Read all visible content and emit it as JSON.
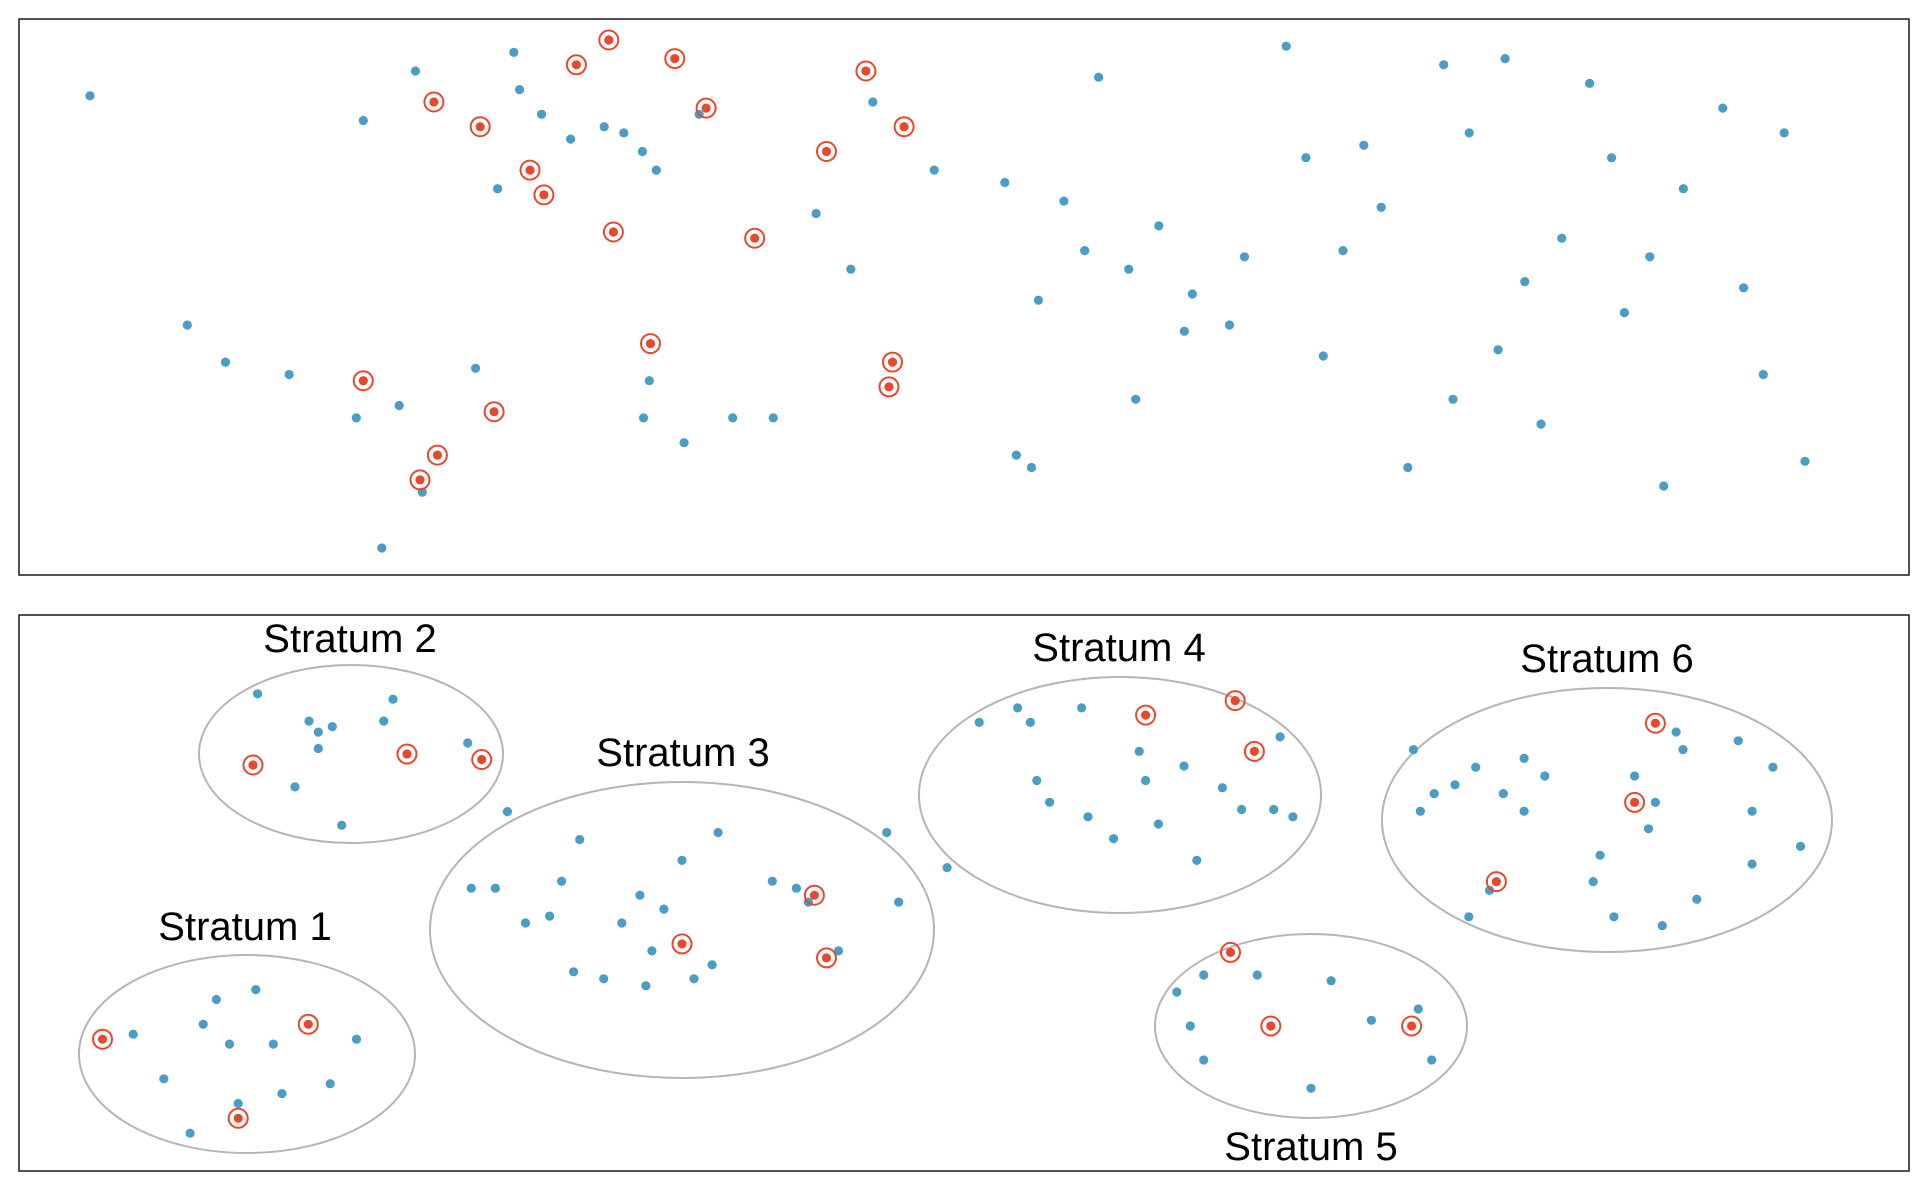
{
  "colors": {
    "point": "#4a9dc5",
    "sampled_ring": "#e8482e",
    "stratum_outline": "#b5b5b5",
    "frame": "#1a1a1a"
  },
  "panels": {
    "top": {
      "description_shown": false,
      "points": [
        [
          -32.1,
          3.4
        ],
        [
          -23.7,
          -0.3
        ],
        [
          -20.4,
          -0.9
        ],
        [
          -14.9,
          -1.1
        ],
        [
          -9.1,
          -1.8
        ],
        [
          -8.5,
          3.0
        ],
        [
          -6.9,
          -3.9
        ],
        [
          -5.4,
          -1.6
        ],
        [
          -4.0,
          3.8
        ],
        [
          -3.4,
          -3.0
        ],
        [
          1.2,
          -1.0
        ],
        [
          3.1,
          1.9
        ],
        [
          4.5,
          4.1
        ],
        [
          5.0,
          3.5
        ],
        [
          6.9,
          3.1
        ],
        [
          9.4,
          2.7
        ],
        [
          12.3,
          2.9
        ],
        [
          14.0,
          2.8
        ],
        [
          15.6,
          2.5
        ],
        [
          15.7,
          -1.8
        ],
        [
          16.2,
          -1.2
        ],
        [
          16.8,
          2.2
        ],
        [
          19.2,
          -2.2
        ],
        [
          20.5,
          3.1
        ],
        [
          23.4,
          -1.8
        ],
        [
          26.9,
          -1.8
        ],
        [
          30.6,
          1.5
        ],
        [
          33.6,
          0.6
        ],
        [
          35.5,
          3.3
        ],
        [
          40.8,
          2.2
        ],
        [
          46.9,
          2.0
        ],
        [
          47.9,
          -2.4
        ],
        [
          49.2,
          -2.6
        ],
        [
          49.8,
          0.1
        ],
        [
          52.0,
          1.7
        ],
        [
          53.8,
          0.9
        ],
        [
          55.0,
          3.7
        ],
        [
          57.6,
          0.6
        ],
        [
          58.2,
          -1.5
        ],
        [
          60.2,
          1.3
        ],
        [
          62.4,
          -0.4
        ],
        [
          63.1,
          0.2
        ],
        [
          66.3,
          -0.3
        ],
        [
          67.6,
          0.8
        ],
        [
          71.2,
          4.2
        ],
        [
          72.9,
          2.4
        ],
        [
          74.4,
          -0.8
        ],
        [
          76.1,
          0.9
        ],
        [
          77.9,
          2.6
        ],
        [
          79.4,
          1.6
        ],
        [
          81.7,
          -2.6
        ],
        [
          84.8,
          3.9
        ],
        [
          85.6,
          -1.5
        ],
        [
          87.0,
          2.8
        ],
        [
          89.5,
          -0.7
        ],
        [
          90.1,
          4.0
        ],
        [
          91.8,
          0.4
        ],
        [
          93.2,
          -1.9
        ],
        [
          95.0,
          1.1
        ],
        [
          97.4,
          3.6
        ],
        [
          99.3,
          2.4
        ],
        [
          100.4,
          -0.1
        ],
        [
          102.6,
          0.8
        ],
        [
          103.8,
          -2.9
        ],
        [
          105.5,
          1.9
        ],
        [
          108.9,
          3.2
        ],
        [
          110.7,
          0.3
        ],
        [
          112.4,
          -1.1
        ],
        [
          114.2,
          2.8
        ],
        [
          116.0,
          -2.5
        ]
      ],
      "sampled": [
        [
          -8.5,
          -1.2
        ],
        [
          -2.4,
          3.3
        ],
        [
          1.6,
          2.9
        ],
        [
          2.8,
          -1.7
        ],
        [
          5.9,
          2.2
        ],
        [
          7.1,
          1.8
        ],
        [
          9.9,
          3.9
        ],
        [
          12.7,
          4.3
        ],
        [
          13.1,
          1.2
        ],
        [
          16.3,
          -0.6
        ],
        [
          21.1,
          3.2
        ],
        [
          25.3,
          1.1
        ],
        [
          31.5,
          2.5
        ],
        [
          34.9,
          3.8
        ],
        [
          36.9,
          -1.3
        ],
        [
          37.2,
          -0.9
        ],
        [
          38.2,
          2.9
        ],
        [
          -2.1,
          -2.4
        ],
        [
          -3.6,
          -2.8
        ],
        [
          18.4,
          4.0
        ]
      ]
    },
    "bottom": {
      "strata": [
        {
          "label": "Stratum 1",
          "points": [
            [
              -2.6,
              0.4
            ],
            [
              -1.9,
              -0.5
            ],
            [
              -1.0,
              0.6
            ],
            [
              -0.7,
              1.1
            ],
            [
              -0.4,
              0.2
            ],
            [
              0.2,
              1.3
            ],
            [
              -0.2,
              -1.0
            ],
            [
              0.8,
              -0.8
            ],
            [
              1.9,
              -0.6
            ],
            [
              2.5,
              0.3
            ],
            [
              -1.3,
              -1.6
            ],
            [
              0.6,
              0.2
            ]
          ],
          "sampled": [
            [
              -3.3,
              0.3
            ],
            [
              -0.2,
              -1.3
            ],
            [
              1.4,
              0.6
            ]
          ]
        },
        {
          "label": "Stratum 2",
          "points": [
            [
              -2.0,
              1.1
            ],
            [
              -0.9,
              0.6
            ],
            [
              -0.7,
              0.4
            ],
            [
              -0.4,
              0.5
            ],
            [
              0.7,
              0.6
            ],
            [
              0.9,
              1.0
            ],
            [
              -0.7,
              0.1
            ],
            [
              -1.2,
              -0.6
            ],
            [
              -0.2,
              -1.3
            ],
            [
              2.5,
              0.2
            ]
          ],
          "sampled": [
            [
              -2.1,
              -0.2
            ],
            [
              1.2,
              0.0
            ],
            [
              2.8,
              -0.1
            ]
          ]
        },
        {
          "label": "Stratum 3",
          "points": [
            [
              -2.9,
              1.7
            ],
            [
              -1.7,
              1.3
            ],
            [
              -3.5,
              0.6
            ],
            [
              -3.1,
              0.6
            ],
            [
              -2.0,
              0.7
            ],
            [
              -2.6,
              0.1
            ],
            [
              -0.7,
              0.5
            ],
            [
              -0.3,
              0.3
            ],
            [
              0.0,
              1.0
            ],
            [
              -1.0,
              0.1
            ],
            [
              1.9,
              0.6
            ],
            [
              2.1,
              0.4
            ],
            [
              3.4,
              1.4
            ],
            [
              0.6,
              1.4
            ],
            [
              1.5,
              0.7
            ],
            [
              -0.5,
              -0.3
            ],
            [
              -1.8,
              -0.6
            ],
            [
              -1.3,
              -0.7
            ],
            [
              0.5,
              -0.5
            ],
            [
              0.2,
              -0.7
            ],
            [
              2.6,
              -0.3
            ],
            [
              3.6,
              0.4
            ],
            [
              -2.2,
              0.2
            ],
            [
              -0.6,
              -0.8
            ]
          ],
          "sampled": [
            [
              0.0,
              -0.2
            ],
            [
              2.2,
              0.5
            ],
            [
              2.4,
              -0.4
            ]
          ]
        },
        {
          "label": "Stratum 4",
          "points": [
            [
              -2.2,
              1.0
            ],
            [
              -1.6,
              1.2
            ],
            [
              -1.4,
              1.0
            ],
            [
              -0.6,
              1.2
            ],
            [
              0.3,
              0.6
            ],
            [
              0.4,
              0.2
            ],
            [
              1.0,
              0.4
            ],
            [
              1.6,
              0.1
            ],
            [
              2.5,
              0.8
            ],
            [
              2.4,
              -0.2
            ],
            [
              -1.3,
              0.2
            ],
            [
              -1.1,
              -0.1
            ],
            [
              -0.5,
              -0.3
            ],
            [
              0.6,
              -0.4
            ],
            [
              1.9,
              -0.2
            ],
            [
              -0.1,
              -0.6
            ],
            [
              1.2,
              -0.9
            ],
            [
              -2.7,
              -1.0
            ],
            [
              2.7,
              -0.3
            ]
          ],
          "sampled": [
            [
              0.4,
              1.1
            ],
            [
              1.8,
              1.3
            ],
            [
              2.1,
              0.6
            ]
          ]
        },
        {
          "label": "Stratum 5",
          "points": [
            [
              -2.0,
              0.6
            ],
            [
              -1.6,
              0.9
            ],
            [
              -0.8,
              0.9
            ],
            [
              0.3,
              0.8
            ],
            [
              0.9,
              0.1
            ],
            [
              1.6,
              0.3
            ],
            [
              -1.8,
              0.0
            ],
            [
              -1.6,
              -0.6
            ],
            [
              1.8,
              -0.6
            ],
            [
              0.0,
              -1.1
            ]
          ],
          "sampled": [
            [
              -1.2,
              1.3
            ],
            [
              -0.6,
              0.0
            ],
            [
              1.5,
              0.0
            ]
          ]
        },
        {
          "label": "Stratum 6",
          "points": [
            [
              -2.8,
              0.8
            ],
            [
              -2.5,
              0.3
            ],
            [
              -2.2,
              0.4
            ],
            [
              -1.9,
              0.6
            ],
            [
              -1.5,
              0.3
            ],
            [
              -0.9,
              0.5
            ],
            [
              -1.2,
              0.1
            ],
            [
              -2.7,
              0.1
            ],
            [
              0.4,
              0.5
            ],
            [
              1.1,
              0.8
            ],
            [
              1.9,
              0.9
            ],
            [
              2.1,
              0.1
            ],
            [
              2.4,
              0.6
            ],
            [
              1.0,
              1.0
            ],
            [
              0.7,
              0.2
            ],
            [
              -0.2,
              -0.7
            ],
            [
              -0.1,
              -0.4
            ],
            [
              0.6,
              -0.1
            ],
            [
              1.3,
              -0.9
            ],
            [
              2.1,
              -0.5
            ],
            [
              2.8,
              -0.3
            ],
            [
              -2.0,
              -1.1
            ],
            [
              -1.7,
              -0.8
            ],
            [
              0.8,
              -1.2
            ],
            [
              0.1,
              -1.1
            ],
            [
              -1.2,
              0.7
            ]
          ],
          "sampled": [
            [
              0.7,
              1.1
            ],
            [
              0.4,
              0.2
            ],
            [
              -1.6,
              -0.7
            ]
          ]
        }
      ]
    }
  }
}
